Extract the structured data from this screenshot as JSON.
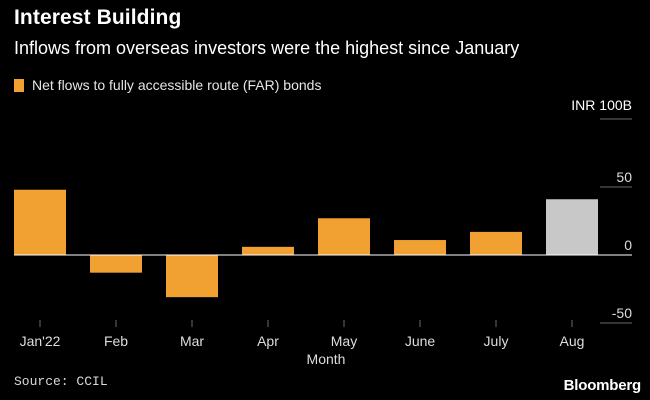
{
  "chart_data": {
    "type": "bar",
    "title": "Interest Building",
    "subtitle": "Inflows from overseas investors were the highest since January",
    "legend": "Net flows to fully accessible route (FAR) bonds",
    "unit_label": "INR 100B",
    "xlabel": "Month",
    "ylabel": "",
    "categories": [
      "Jan'22",
      "Feb",
      "Mar",
      "Apr",
      "May",
      "June",
      "July",
      "Aug"
    ],
    "values": [
      48,
      -13,
      -31,
      6,
      27,
      11,
      17,
      41
    ],
    "highlight": [
      false,
      false,
      false,
      false,
      false,
      false,
      false,
      true
    ],
    "y_ticks": [
      50,
      0,
      -50
    ],
    "y_tick_labels": [
      "50",
      "0",
      "-50"
    ],
    "ylim": [
      -50,
      100
    ],
    "legend_position": "top-left",
    "source": "Source: CCIL"
  },
  "brand": "Bloomberg",
  "colors": {
    "background": "#000000",
    "bar": "#f0a131",
    "bar_highlight": "#c8c8c8",
    "text": "#ffffff",
    "axis_text": "#dddddd",
    "gridline": "#6a6a6a",
    "baseline": "#ffffff"
  }
}
